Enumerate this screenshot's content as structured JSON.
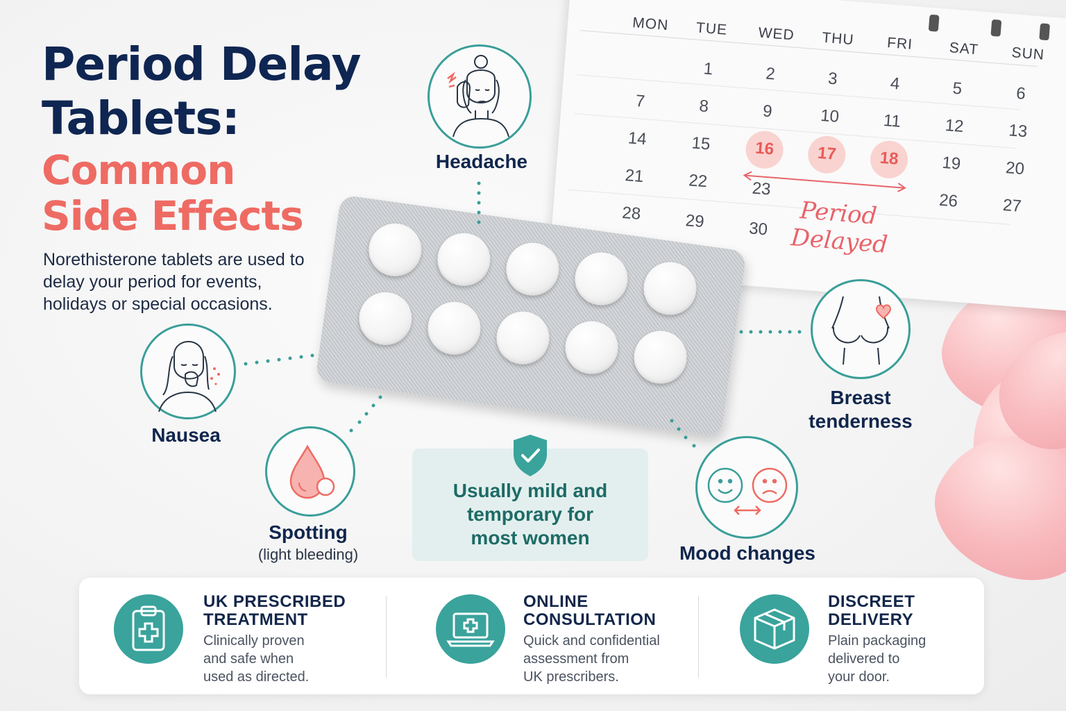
{
  "title": {
    "line1": "Period Delay",
    "line2": "Tablets:",
    "line3": "Common",
    "line4": "Side Effects"
  },
  "intro": "Norethisterone tablets are used to delay your period for events, holidays or special occasions.",
  "calendar": {
    "weekdays": [
      "MON",
      "TUE",
      "WED",
      "THU",
      "FRI",
      "SAT",
      "SUN"
    ],
    "weeks": [
      [
        "",
        "1",
        "2",
        "3",
        "4",
        "5",
        "6"
      ],
      [
        "7",
        "8",
        "9",
        "10",
        "11",
        "12",
        "13"
      ],
      [
        "14",
        "15",
        "16",
        "17",
        "18",
        "19",
        "20"
      ],
      [
        "21",
        "22",
        "23",
        "",
        "",
        "",
        ""
      ],
      [
        "28",
        "29",
        "30",
        "",
        "",
        "26",
        "27"
      ]
    ],
    "highlighted_days": [
      "16",
      "17",
      "18"
    ],
    "note_line1": "Period",
    "note_line2": "Delayed"
  },
  "side_effects": {
    "headache": "Headache",
    "nausea": "Nausea",
    "spotting": "Spotting",
    "spotting_sub": "(light bleeding)",
    "breast_line1": "Breast",
    "breast_line2": "tenderness",
    "mood": "Mood changes"
  },
  "mild_box": {
    "line1": "Usually mild and",
    "line2": "temporary for",
    "line3": "most women"
  },
  "features": [
    {
      "icon": "clipboard-cross-icon",
      "title_line1": "UK PRESCRIBED",
      "title_line2": "TREATMENT",
      "desc_line1": "Clinically proven",
      "desc_line2": "and safe when",
      "desc_line3": "used as directed."
    },
    {
      "icon": "laptop-cross-icon",
      "title_line1": "ONLINE",
      "title_line2": "CONSULTATION",
      "desc_line1": "Quick and confidential",
      "desc_line2": "assessment from",
      "desc_line3": "UK prescribers."
    },
    {
      "icon": "package-box-icon",
      "title_line1": "DISCREET",
      "title_line2": "DELIVERY",
      "desc_line1": "Plain packaging",
      "desc_line2": "delivered to",
      "desc_line3": "your door."
    }
  ],
  "colors": {
    "navy": "#0f2652",
    "coral": "#ee6b63",
    "teal": "#3a9e99",
    "mild_bg": "#e3efee"
  }
}
